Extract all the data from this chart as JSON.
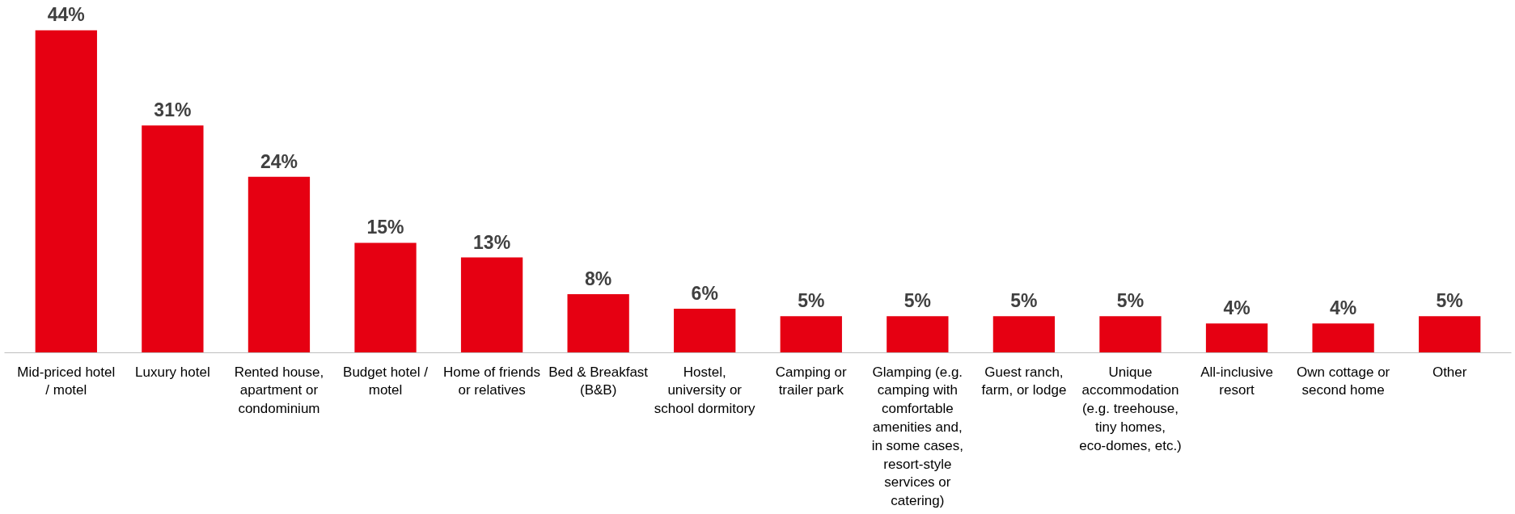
{
  "chart_data": {
    "type": "bar",
    "categories": [
      "Mid-priced hotel / motel",
      "Luxury hotel",
      "Rented house, apartment or condominium",
      "Budget hotel / motel",
      "Home of friends or relatives",
      "Bed & Breakfast (B&B)",
      "Hostel, university or school dormitory",
      "Camping or trailer park",
      "Glamping (e.g. camping with comfortable amenities and, in some cases, resort-style services or catering)",
      "Guest ranch, farm, or lodge",
      "Unique accommodation (e.g. treehouse, tiny homes, eco-domes, etc.)",
      "All-inclusive resort",
      "Own cottage or second home",
      "Other"
    ],
    "values": [
      44,
      31,
      24,
      15,
      13,
      8,
      6,
      5,
      5,
      5,
      5,
      4,
      4,
      5
    ],
    "value_labels": [
      "44%",
      "31%",
      "24%",
      "15%",
      "13%",
      "8%",
      "6%",
      "5%",
      "5%",
      "5%",
      "5%",
      "4%",
      "4%",
      "5%"
    ],
    "color": "#e60012",
    "grid": false
  }
}
